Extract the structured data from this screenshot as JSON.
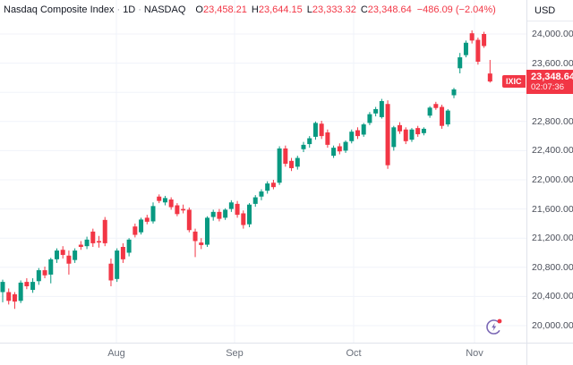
{
  "header": {
    "title": "Nasdaq Composite Index",
    "separator": "·",
    "interval": "1D",
    "exchange": "NASDAQ",
    "ohlc": [
      {
        "label": "O",
        "value": "23,458.21"
      },
      {
        "label": "H",
        "value": "23,644.15"
      },
      {
        "label": "L",
        "value": "23,333.32"
      },
      {
        "label": "C",
        "value": "23,348.64"
      }
    ],
    "change": "−486.09 (−2.04%)"
  },
  "price_axis": {
    "currency": "USD",
    "ticks": [
      {
        "label": "24,000.00",
        "value": 24000
      },
      {
        "label": "23,600.00",
        "value": 23600
      },
      {
        "label": "22,800.00",
        "value": 22800
      },
      {
        "label": "22,400.00",
        "value": 22400
      },
      {
        "label": "22,000.00",
        "value": 22000
      },
      {
        "label": "21,600.00",
        "value": 21600
      },
      {
        "label": "21,200.00",
        "value": 21200
      },
      {
        "label": "20,800.00",
        "value": 20800
      },
      {
        "label": "20,400.00",
        "value": 20400
      },
      {
        "label": "20,000.00",
        "value": 20000
      }
    ]
  },
  "last_price_badge": {
    "tag": "IXIC",
    "price": "23,348.64",
    "price_value": 23348.64,
    "countdown": "02:07:36"
  },
  "time_axis": {
    "labels": [
      {
        "text": "Aug",
        "x": 130
      },
      {
        "text": "Sep",
        "x": 262
      },
      {
        "text": "Oct",
        "x": 395
      },
      {
        "text": "Nov",
        "x": 530
      }
    ]
  },
  "colors": {
    "up": "#089981",
    "down": "#f23645",
    "grid": "#f0f3fa",
    "badge": "#f23645",
    "events_icon": "#7b68b5",
    "alert_dot": "#f23645"
  },
  "chart_data": {
    "type": "candlestick",
    "title": "Nasdaq Composite Index",
    "interval": "1D",
    "exchange": "NASDAQ",
    "currency": "USD",
    "ylim": [
      20000,
      24000
    ],
    "grid_step": 400,
    "x_months": [
      "Aug",
      "Sep",
      "Oct",
      "Nov"
    ],
    "last_close": 23348.64,
    "change": -486.09,
    "change_pct": -2.04,
    "candles_ohlc": [
      [
        20460,
        20630,
        20320,
        20600
      ],
      [
        20460,
        20510,
        20290,
        20340
      ],
      [
        20430,
        20460,
        20230,
        20330
      ],
      [
        20340,
        20620,
        20310,
        20590
      ],
      [
        20600,
        20650,
        20500,
        20540
      ],
      [
        20490,
        20650,
        20450,
        20600
      ],
      [
        20610,
        20790,
        20560,
        20760
      ],
      [
        20760,
        20810,
        20650,
        20690
      ],
      [
        20700,
        20930,
        20580,
        20910
      ],
      [
        20910,
        21060,
        20860,
        21030
      ],
      [
        21040,
        21090,
        20920,
        20970
      ],
      [
        20960,
        21030,
        20700,
        20850
      ],
      [
        20900,
        21060,
        20860,
        21030
      ],
      [
        21110,
        21160,
        21040,
        21080
      ],
      [
        21090,
        21220,
        21050,
        21180
      ],
      [
        21290,
        21330,
        21080,
        21130
      ],
      [
        21160,
        21230,
        21070,
        21140
      ],
      [
        21450,
        21490,
        21090,
        21130
      ],
      [
        20850,
        20920,
        20540,
        20620
      ],
      [
        20640,
        21060,
        20600,
        21030
      ],
      [
        21080,
        21130,
        20860,
        20910
      ],
      [
        21000,
        21200,
        20950,
        21180
      ],
      [
        21360,
        21400,
        21210,
        21245
      ],
      [
        21280,
        21480,
        21250,
        21455
      ],
      [
        21480,
        21520,
        21390,
        21425
      ],
      [
        21430,
        21690,
        21400,
        21640
      ],
      [
        21770,
        21800,
        21680,
        21710
      ],
      [
        21690,
        21780,
        21650,
        21750
      ],
      [
        21730,
        21760,
        21590,
        21625
      ],
      [
        21650,
        21680,
        21500,
        21530
      ],
      [
        21600,
        21660,
        21540,
        21580
      ],
      [
        21590,
        21620,
        21280,
        21310
      ],
      [
        21290,
        21330,
        20940,
        21160
      ],
      [
        21140,
        21200,
        21050,
        21105
      ],
      [
        21110,
        21500,
        21080,
        21480
      ],
      [
        21490,
        21590,
        21440,
        21560
      ],
      [
        21560,
        21600,
        21430,
        21465
      ],
      [
        21480,
        21610,
        21450,
        21590
      ],
      [
        21600,
        21720,
        21560,
        21690
      ],
      [
        21670,
        21710,
        21480,
        21520
      ],
      [
        21540,
        21580,
        21330,
        21380
      ],
      [
        21390,
        21680,
        21350,
        21660
      ],
      [
        21670,
        21790,
        21630,
        21760
      ],
      [
        21770,
        21870,
        21720,
        21840
      ],
      [
        21850,
        21980,
        21810,
        21950
      ],
      [
        21960,
        22000,
        21870,
        21900
      ],
      [
        21960,
        22460,
        21930,
        22430
      ],
      [
        22430,
        22470,
        22180,
        22220
      ],
      [
        22260,
        22300,
        22120,
        22160
      ],
      [
        22180,
        22330,
        22140,
        22300
      ],
      [
        22420,
        22520,
        22380,
        22480
      ],
      [
        22490,
        22600,
        22440,
        22570
      ],
      [
        22590,
        22800,
        22550,
        22780
      ],
      [
        22770,
        22810,
        22560,
        22600
      ],
      [
        22650,
        22690,
        22440,
        22480
      ],
      [
        22330,
        22470,
        22300,
        22440
      ],
      [
        22460,
        22500,
        22350,
        22390
      ],
      [
        22400,
        22540,
        22370,
        22520
      ],
      [
        22530,
        22690,
        22500,
        22660
      ],
      [
        22680,
        22720,
        22560,
        22600
      ],
      [
        22620,
        22780,
        22590,
        22760
      ],
      [
        22780,
        22930,
        22750,
        22900
      ],
      [
        22910,
        23000,
        22870,
        22970
      ],
      [
        22860,
        23110,
        22840,
        23080
      ],
      [
        23040,
        23090,
        22150,
        22200
      ],
      [
        22450,
        22740,
        22400,
        22720
      ],
      [
        22750,
        22790,
        22630,
        22665
      ],
      [
        22690,
        22720,
        22490,
        22530
      ],
      [
        22550,
        22710,
        22520,
        22690
      ],
      [
        22710,
        22740,
        22590,
        22625
      ],
      [
        22640,
        22720,
        22610,
        22700
      ],
      [
        22880,
        23010,
        22850,
        22990
      ],
      [
        23040,
        23070,
        22960,
        22985
      ],
      [
        23000,
        23030,
        22700,
        22740
      ],
      [
        22760,
        22970,
        22730,
        22950
      ],
      [
        23160,
        23260,
        23120,
        23240
      ],
      [
        23530,
        23740,
        23460,
        23680
      ],
      [
        23710,
        23910,
        23680,
        23880
      ],
      [
        24010,
        24050,
        23870,
        23910
      ],
      [
        23920,
        23950,
        23580,
        23620
      ],
      [
        24000,
        24030,
        23810,
        23835
      ],
      [
        23458.21,
        23644.15,
        23333.32,
        23348.64
      ]
    ]
  }
}
